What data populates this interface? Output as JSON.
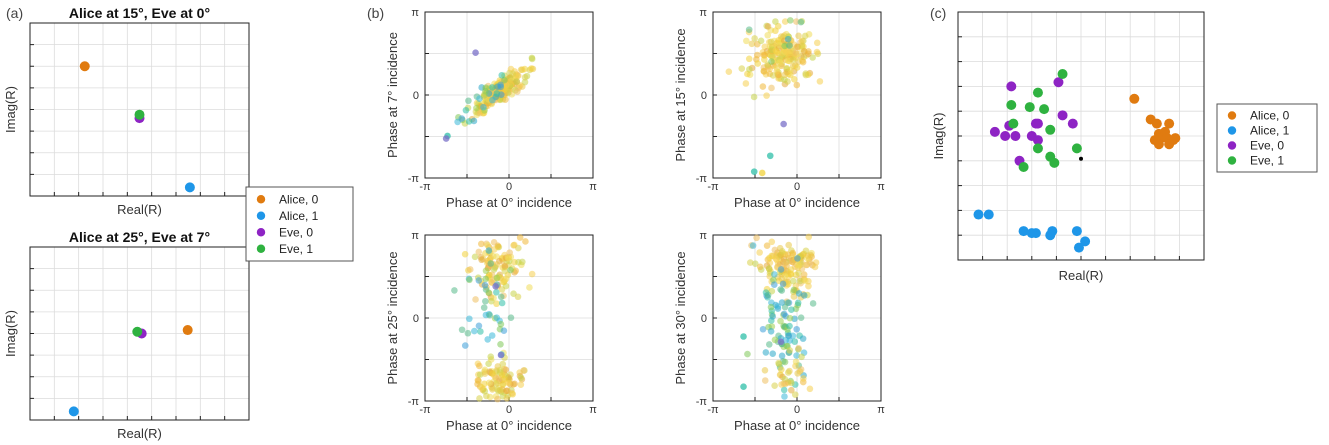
{
  "panel_labels": [
    "(a)",
    "(b)",
    "(c)"
  ],
  "colors": {
    "alice0": "#E07B10",
    "alice1": "#1E96E8",
    "eve0": "#8E24C4",
    "eve1": "#2FB240",
    "grid": "#dcdcdc",
    "axis": "#222222"
  },
  "legend_a": [
    "Alice, 0",
    "Alice, 1",
    "Eve, 0",
    "Eve, 1"
  ],
  "legend_c": [
    "Alice, 0",
    "Alice, 1",
    "Eve, 0",
    "Eve, 1"
  ],
  "chart_data": [
    {
      "id": "a1",
      "type": "scatter",
      "title": "Alice at 15°, Eve at 0°",
      "xlabel": "Real(R)",
      "ylabel": "Imag(R)",
      "xlim": [
        0,
        10
      ],
      "ylim": [
        0,
        10
      ],
      "grid": true,
      "series": [
        {
          "name": "Alice, 0",
          "color": "#E07B10",
          "points": [
            [
              2.5,
              7.5
            ]
          ]
        },
        {
          "name": "Alice, 1",
          "color": "#1E96E8",
          "points": [
            [
              7.3,
              0.5
            ]
          ]
        },
        {
          "name": "Eve, 0",
          "color": "#8E24C4",
          "points": [
            [
              5.0,
              4.5
            ]
          ]
        },
        {
          "name": "Eve, 1",
          "color": "#2FB240",
          "points": [
            [
              5.0,
              4.7
            ]
          ]
        }
      ]
    },
    {
      "id": "a2",
      "type": "scatter",
      "title": "Alice at 25°, Eve at 7°",
      "xlabel": "Real(R)",
      "ylabel": "Imag(R)",
      "xlim": [
        0,
        10
      ],
      "ylim": [
        0,
        10
      ],
      "grid": true,
      "series": [
        {
          "name": "Alice, 0",
          "color": "#E07B10",
          "points": [
            [
              7.2,
              5.2
            ]
          ]
        },
        {
          "name": "Alice, 1",
          "color": "#1E96E8",
          "points": [
            [
              2.0,
              0.5
            ]
          ]
        },
        {
          "name": "Eve, 0",
          "color": "#8E24C4",
          "points": [
            [
              5.1,
              5.0
            ]
          ]
        },
        {
          "name": "Eve, 1",
          "color": "#2FB240",
          "points": [
            [
              4.9,
              5.1
            ]
          ]
        }
      ]
    },
    {
      "id": "b1",
      "type": "scatter",
      "xlabel": "Phase at 0° incidence",
      "ylabel": "Phase at 7° incidence",
      "xlim": [
        -3.1416,
        3.1416
      ],
      "ylim": [
        -3.1416,
        3.1416
      ],
      "grid": true,
      "xticks": [
        "-π",
        "0",
        "π"
      ],
      "yticks": [
        "-π",
        "0",
        "π"
      ],
      "cloud": {
        "seed": 11,
        "groups": [
          {
            "n": 190,
            "cx": -0.3,
            "cy": 0.2,
            "sx": 0.5,
            "sy": 0.4,
            "corr": 0.85,
            "palette": "warm"
          },
          {
            "n": 28,
            "cx": -0.9,
            "cy": -0.2,
            "sx": 0.5,
            "sy": 0.45,
            "corr": 0.8,
            "palette": "cool"
          }
        ],
        "extra": [
          [
            -2.3,
            -1.55,
            "cool"
          ],
          [
            -2.35,
            -1.65,
            "purple"
          ],
          [
            -1.25,
            1.6,
            "purple"
          ]
        ]
      }
    },
    {
      "id": "b2",
      "type": "scatter",
      "xlabel": "Phase at 0° incidence",
      "ylabel": "Phase at 15° incidence",
      "xlim": [
        -3.1416,
        3.1416
      ],
      "ylim": [
        -3.1416,
        3.1416
      ],
      "grid": true,
      "xticks": [
        "-π",
        "0",
        "π"
      ],
      "yticks": [
        "-π",
        "0",
        "π"
      ],
      "cloud": {
        "seed": 23,
        "groups": [
          {
            "n": 200,
            "cx": -0.55,
            "cy": 1.45,
            "sx": 0.55,
            "sy": 0.55,
            "corr": 0.15,
            "palette": "warm"
          },
          {
            "n": 8,
            "cx": -0.9,
            "cy": 2.2,
            "sx": 0.6,
            "sy": 0.5,
            "corr": 0.0,
            "palette": "cool"
          }
        ],
        "extra": [
          [
            -0.5,
            -1.1,
            "purple"
          ],
          [
            -1.0,
            -2.3,
            "cool"
          ],
          [
            -1.6,
            -2.9,
            "cool"
          ],
          [
            -1.3,
            -2.95,
            "warm"
          ]
        ]
      }
    },
    {
      "id": "b3",
      "type": "scatter",
      "xlabel": "Phase at 0° incidence",
      "ylabel": "Phase at 25° incidence",
      "xlim": [
        -3.1416,
        3.1416
      ],
      "ylim": [
        -3.1416,
        3.1416
      ],
      "grid": true,
      "xticks": [
        "-π",
        "0",
        "π"
      ],
      "yticks": [
        "-π",
        "0",
        "π"
      ],
      "cloud": {
        "seed": 37,
        "groups": [
          {
            "n": 110,
            "cx": -0.45,
            "cy": 2.0,
            "sx": 0.5,
            "sy": 0.7,
            "corr": 0.0,
            "palette": "warm"
          },
          {
            "n": 100,
            "cx": -0.45,
            "cy": -2.4,
            "sx": 0.5,
            "sy": 0.45,
            "corr": 0.0,
            "palette": "warm"
          },
          {
            "n": 40,
            "cx": -0.5,
            "cy": 0.3,
            "sx": 0.55,
            "sy": 1.0,
            "corr": 0.0,
            "palette": "cool"
          }
        ],
        "extra": [
          [
            -0.3,
            -1.4,
            "purple"
          ],
          [
            -0.5,
            1.2,
            "purple"
          ]
        ]
      }
    },
    {
      "id": "b4",
      "type": "scatter",
      "xlabel": "Phase at 0° incidence",
      "ylabel": "Phase at 30° incidence",
      "xlim": [
        -3.1416,
        3.1416
      ],
      "ylim": [
        -3.1416,
        3.1416
      ],
      "grid": true,
      "xticks": [
        "-π",
        "0",
        "π"
      ],
      "yticks": [
        "-π",
        "0",
        "π"
      ],
      "cloud": {
        "seed": 53,
        "groups": [
          {
            "n": 140,
            "cx": -0.35,
            "cy": 2.0,
            "sx": 0.55,
            "sy": 0.55,
            "corr": 0.0,
            "palette": "warm"
          },
          {
            "n": 90,
            "cx": -0.5,
            "cy": -0.2,
            "sx": 0.45,
            "sy": 1.2,
            "corr": 0.0,
            "palette": "cool"
          },
          {
            "n": 30,
            "cx": -0.4,
            "cy": -2.3,
            "sx": 0.45,
            "sy": 0.5,
            "corr": 0.0,
            "palette": "warm"
          }
        ],
        "extra": [
          [
            -2.0,
            -0.7,
            "cool"
          ],
          [
            -0.6,
            -0.9,
            "purple"
          ],
          [
            -2.0,
            -2.6,
            "cool"
          ]
        ]
      }
    },
    {
      "id": "c",
      "type": "scatter",
      "xlabel": "Real(R)",
      "ylabel": "Imag(R)",
      "xlim": [
        0,
        12
      ],
      "ylim": [
        0,
        12
      ],
      "grid": true,
      "series": [
        {
          "name": "Alice, 0",
          "color": "#E07B10",
          "points": [
            [
              8.6,
              7.8
            ],
            [
              9.4,
              6.8
            ],
            [
              9.7,
              6.6
            ],
            [
              10.3,
              6.6
            ],
            [
              9.8,
              6.1
            ],
            [
              10.1,
              6.2
            ],
            [
              9.9,
              5.9
            ],
            [
              10.6,
              5.9
            ],
            [
              10.2,
              5.9
            ],
            [
              9.6,
              5.8
            ],
            [
              10.5,
              5.8
            ],
            [
              9.8,
              5.6
            ],
            [
              10.3,
              5.6
            ]
          ]
        },
        {
          "name": "Alice, 1",
          "color": "#1E96E8",
          "points": [
            [
              1.0,
              2.2
            ],
            [
              1.5,
              2.2
            ],
            [
              3.2,
              1.4
            ],
            [
              3.8,
              1.3
            ],
            [
              3.6,
              1.3
            ],
            [
              4.6,
              1.4
            ],
            [
              5.8,
              1.4
            ],
            [
              4.5,
              1.2
            ],
            [
              6.2,
              0.9
            ],
            [
              5.9,
              0.6
            ]
          ]
        },
        {
          "name": "Eve, 0",
          "color": "#8E24C4",
          "points": [
            [
              2.6,
              8.4
            ],
            [
              4.9,
              8.6
            ],
            [
              2.5,
              6.5
            ],
            [
              3.8,
              6.6
            ],
            [
              3.9,
              6.6
            ],
            [
              5.1,
              7.0
            ],
            [
              5.6,
              6.6
            ],
            [
              1.8,
              6.2
            ],
            [
              2.3,
              6.0
            ],
            [
              2.8,
              6.0
            ],
            [
              3.6,
              6.0
            ],
            [
              3.0,
              4.8
            ],
            [
              3.9,
              5.8
            ]
          ]
        },
        {
          "name": "Eve, 1",
          "color": "#2FB240",
          "points": [
            [
              5.1,
              9.0
            ],
            [
              3.9,
              8.1
            ],
            [
              2.6,
              7.5
            ],
            [
              3.5,
              7.4
            ],
            [
              4.2,
              7.3
            ],
            [
              2.7,
              6.6
            ],
            [
              4.5,
              6.3
            ],
            [
              3.9,
              5.4
            ],
            [
              4.5,
              5.0
            ],
            [
              3.2,
              4.5
            ],
            [
              4.7,
              4.7
            ],
            [
              5.8,
              5.4
            ]
          ]
        },
        {
          "name": "",
          "color": "#000000",
          "small": true,
          "points": [
            [
              6.0,
              4.9
            ]
          ]
        }
      ]
    }
  ]
}
